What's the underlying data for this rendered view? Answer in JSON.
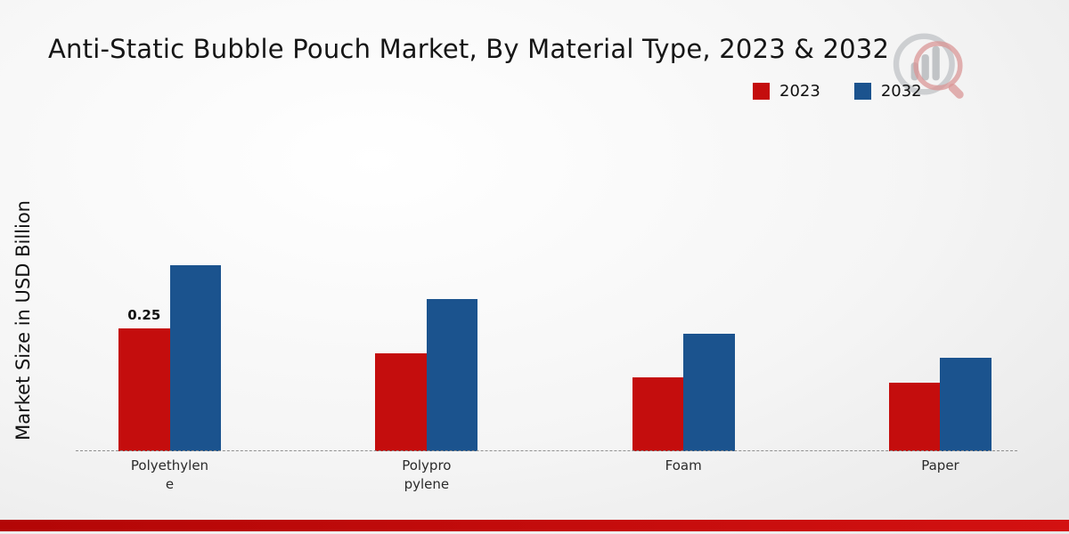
{
  "title": "Anti-Static Bubble Pouch Market, By Material Type, 2023 & 2032",
  "y_axis_label": "Market Size in USD Billion",
  "legend": {
    "items": [
      {
        "label": "2023",
        "color": "#c40d0d"
      },
      {
        "label": "2032",
        "color": "#1b538e"
      }
    ]
  },
  "chart_data": {
    "type": "bar",
    "title": "Anti-Static Bubble Pouch Market, By Material Type, 2023 & 2032",
    "ylabel": "Market Size in USD Billion",
    "categories": [
      "Polyethylene",
      "Polypropylene",
      "Foam",
      "Paper"
    ],
    "x_tick_label_lines": [
      [
        "Polyethylen",
        "e"
      ],
      [
        "Polypro",
        "pylene"
      ],
      [
        "Foam"
      ],
      [
        "Paper"
      ]
    ],
    "series": [
      {
        "name": "2023",
        "color": "#c40d0d",
        "values": [
          0.25,
          0.2,
          0.15,
          0.14
        ]
      },
      {
        "name": "2032",
        "color": "#1b538e",
        "values": [
          0.38,
          0.31,
          0.24,
          0.19
        ]
      }
    ],
    "data_labels": [
      {
        "series": "2023",
        "category": "Polyethylene",
        "text": "0.25"
      }
    ],
    "ylim": [
      0,
      0.45
    ],
    "grid": false,
    "legend_position": "top-right",
    "baseline_style": "dashed"
  }
}
